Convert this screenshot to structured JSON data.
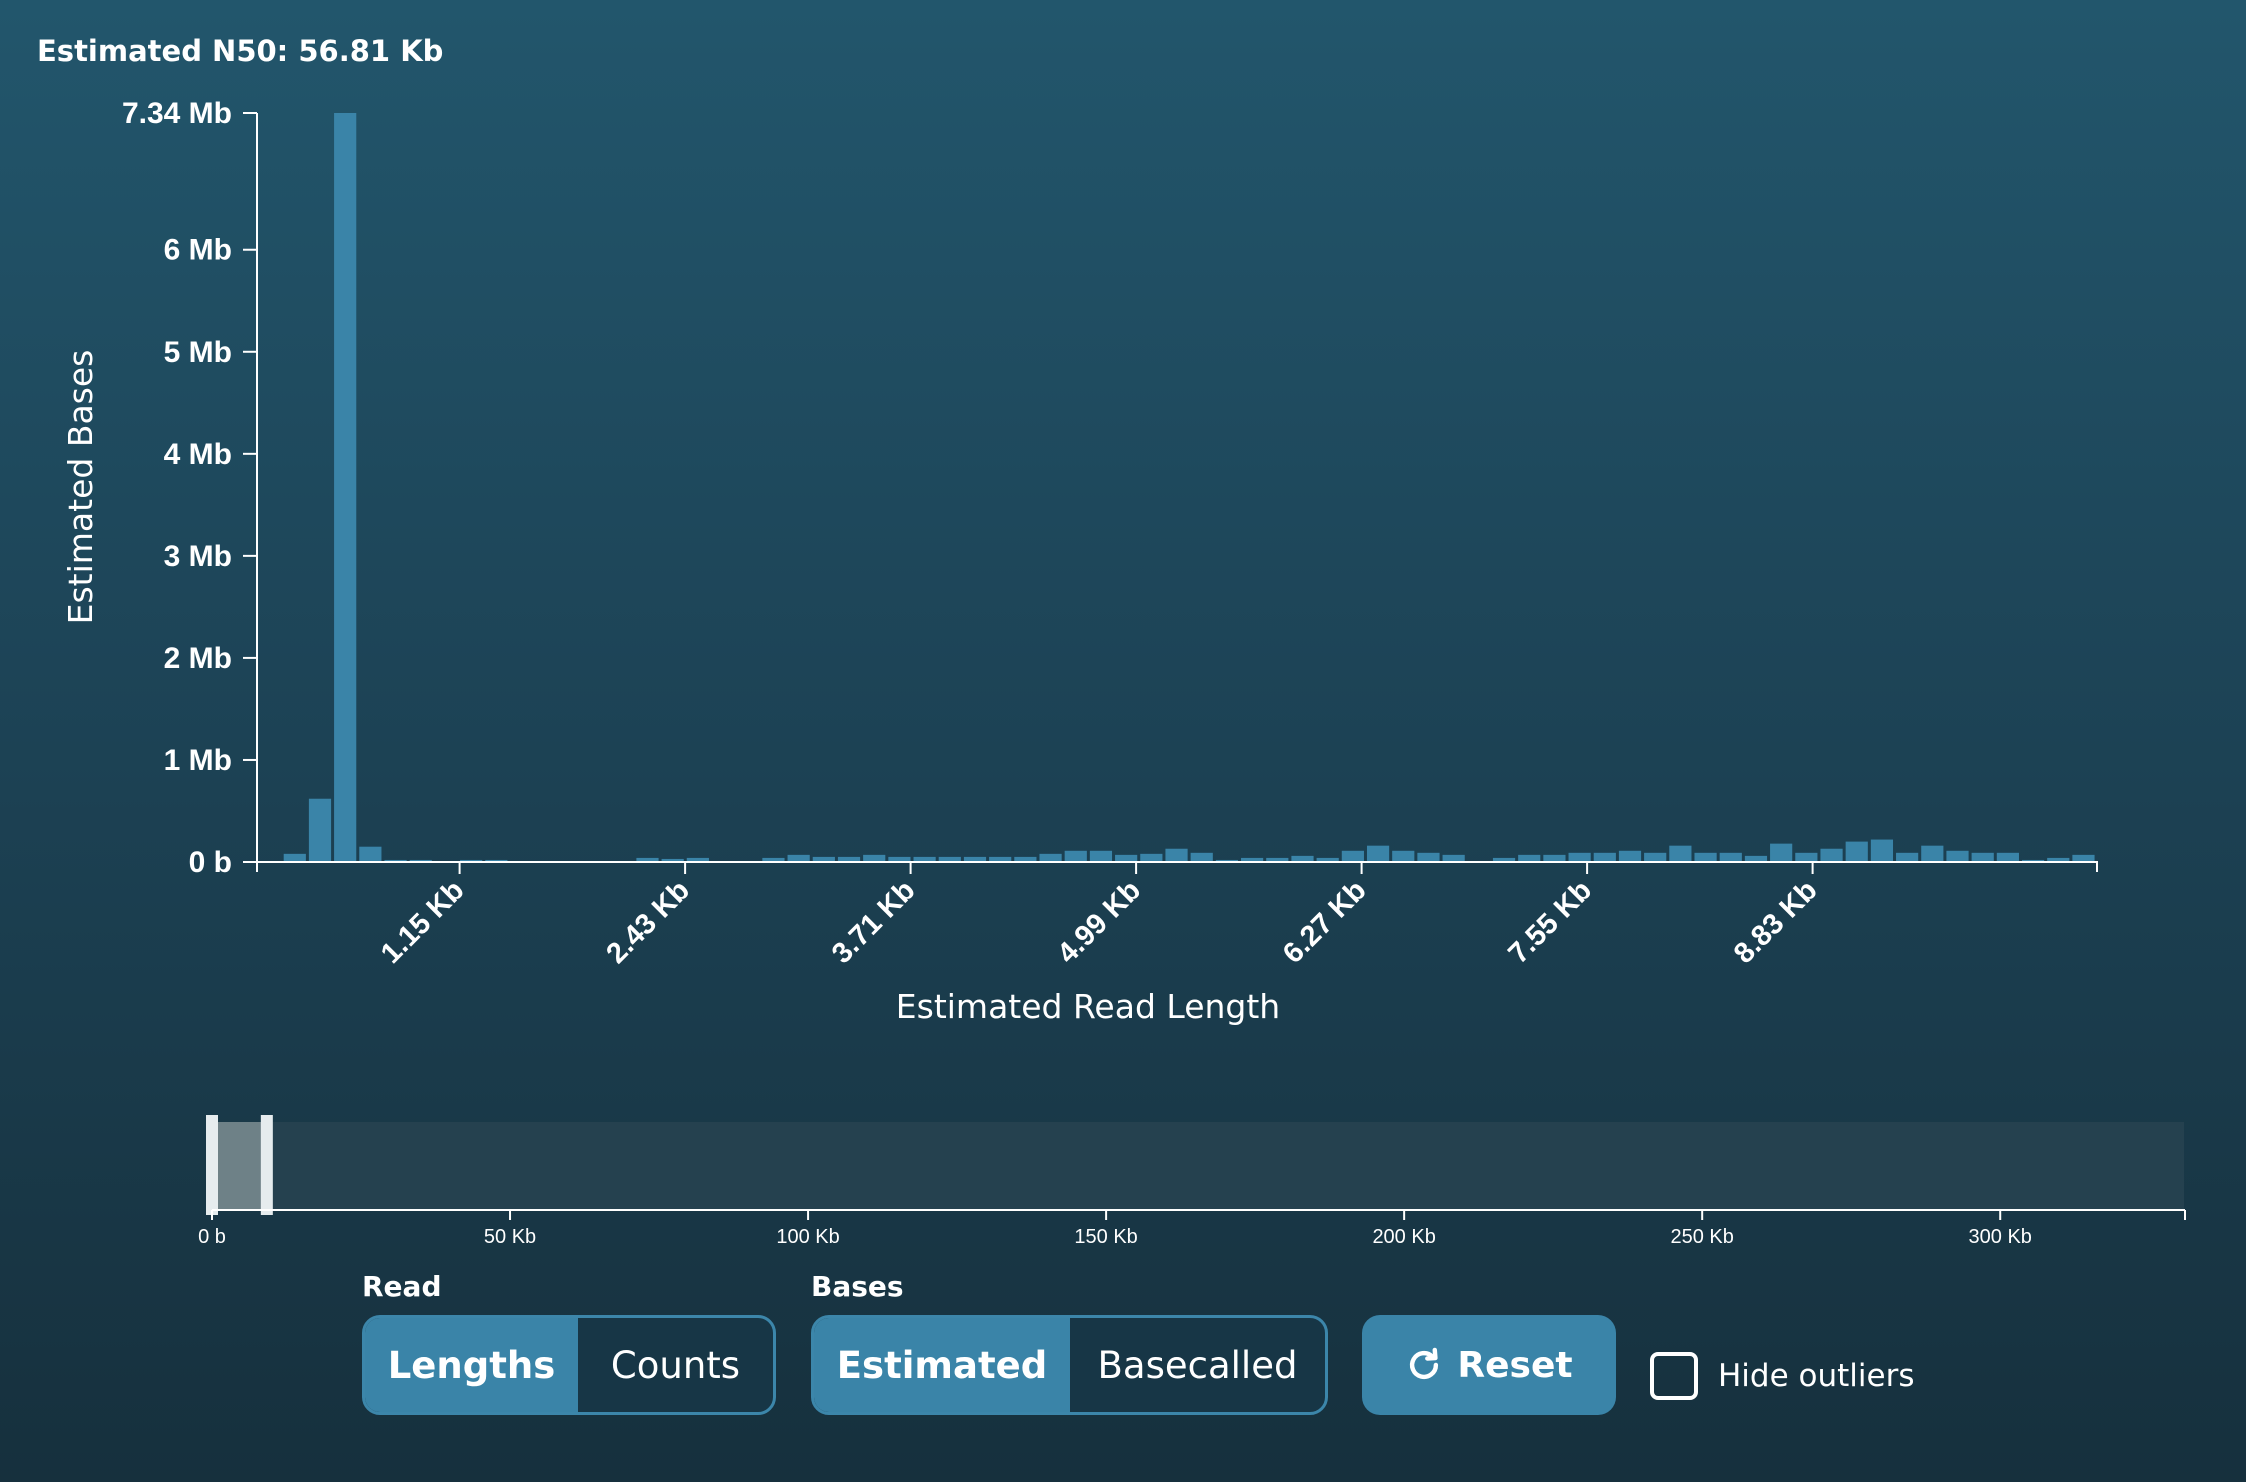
{
  "header": {
    "n50_text": "Estimated N50: 56.81 Kb"
  },
  "chart_data": {
    "type": "bar",
    "title": "",
    "xlabel": "Estimated Read Length",
    "ylabel": "Estimated Bases",
    "ylim": [
      0,
      7.34
    ],
    "y_unit": "Mb",
    "y_ticks": [
      {
        "value": 0,
        "label": "0 b"
      },
      {
        "value": 1,
        "label": "1 Mb"
      },
      {
        "value": 2,
        "label": "2 Mb"
      },
      {
        "value": 3,
        "label": "3 Mb"
      },
      {
        "value": 4,
        "label": "4 Mb"
      },
      {
        "value": 5,
        "label": "5 Mb"
      },
      {
        "value": 6,
        "label": "6 Mb"
      },
      {
        "value": 7.34,
        "label": "7.34 Mb"
      }
    ],
    "xlim_bp": [
      0,
      10450
    ],
    "bin_width_bp": 143,
    "x_ticks": [
      {
        "value": 1150,
        "label": "1.15 Kb"
      },
      {
        "value": 2430,
        "label": "2.43 Kb"
      },
      {
        "value": 3710,
        "label": "3.71 Kb"
      },
      {
        "value": 4990,
        "label": "4.99 Kb"
      },
      {
        "value": 6270,
        "label": "6.27 Kb"
      },
      {
        "value": 7550,
        "label": "7.55 Kb"
      },
      {
        "value": 8830,
        "label": "8.83 Kb"
      }
    ],
    "bins_start_bp": 143,
    "values": [
      0.08,
      0.62,
      7.34,
      0.15,
      0.02,
      0.02,
      0.0,
      0.02,
      0.02,
      0.01,
      0.01,
      0.01,
      0.01,
      0.01,
      0.04,
      0.03,
      0.04,
      0.0,
      0.01,
      0.04,
      0.07,
      0.05,
      0.05,
      0.07,
      0.05,
      0.05,
      0.05,
      0.05,
      0.05,
      0.05,
      0.08,
      0.11,
      0.11,
      0.07,
      0.08,
      0.13,
      0.09,
      0.02,
      0.04,
      0.04,
      0.06,
      0.04,
      0.11,
      0.16,
      0.11,
      0.09,
      0.07,
      0.0,
      0.04,
      0.07,
      0.07,
      0.09,
      0.09,
      0.11,
      0.09,
      0.16,
      0.09,
      0.09,
      0.06,
      0.18,
      0.09,
      0.13,
      0.2,
      0.22,
      0.09,
      0.16,
      0.11,
      0.09,
      0.09,
      0.02,
      0.04,
      0.07
    ],
    "bar_color": "#3a84a8",
    "brush": {
      "ticks": [
        {
          "value": 0,
          "label": "0 b"
        },
        {
          "value": 50,
          "label": "50 Kb"
        },
        {
          "value": 100,
          "label": "100 Kb"
        },
        {
          "value": 150,
          "label": "150 Kb"
        },
        {
          "value": 200,
          "label": "200 Kb"
        },
        {
          "value": 250,
          "label": "250 Kb"
        },
        {
          "value": 300,
          "label": "300 Kb"
        }
      ],
      "domain_kb": [
        0,
        331
      ],
      "selection_kb": [
        0,
        9.2
      ]
    }
  },
  "controls": {
    "read_group_label": "Read",
    "read_options": [
      "Lengths",
      "Counts"
    ],
    "read_selected": "Lengths",
    "bases_group_label": "Bases",
    "bases_options": [
      "Estimated",
      "Basecalled"
    ],
    "bases_selected": "Estimated",
    "reset_label": "Reset",
    "hide_outliers_label": "Hide outliers",
    "hide_outliers_checked": false
  }
}
